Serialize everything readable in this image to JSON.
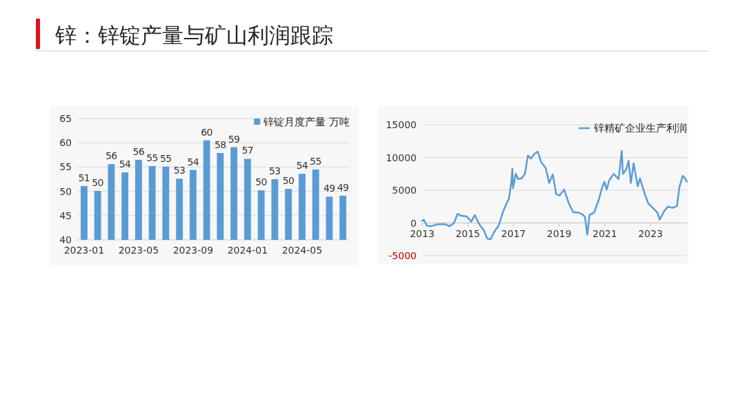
{
  "chart_data": [
    {
      "type": "bar",
      "title": "锌：锌锭产量与矿山利润跟踪",
      "categories": [
        "2023-01",
        null,
        null,
        null,
        "2023-05",
        null,
        null,
        null,
        "2023-09",
        null,
        null,
        null,
        "2024-01",
        null,
        null,
        null,
        "2024-05",
        null,
        null,
        null
      ],
      "series": [
        {
          "name": "锌锭月度产量 万吨",
          "color": "#5b9bd5",
          "values": [
            51.1,
            50.1,
            55.6,
            53.9,
            56.5,
            55.2,
            55.1,
            52.6,
            54.4,
            60.5,
            57.9,
            59.1,
            56.7,
            50.2,
            52.5,
            50.5,
            53.6,
            54.5,
            48.9,
            49.1
          ],
          "value_labels": [
            "51",
            "50",
            "56",
            "54",
            "56",
            "55",
            "55",
            "53",
            "54",
            "60",
            "58",
            "59",
            "57",
            "50",
            "53",
            "50",
            "54",
            "55",
            "49",
            "49"
          ]
        }
      ],
      "ylim": [
        40,
        65
      ],
      "yticks": [
        40,
        45,
        50,
        55,
        60,
        65
      ],
      "grid": "y",
      "legend": "top right"
    },
    {
      "type": "line",
      "series": [
        {
          "name": "锌精矿企业生产利润",
          "color": "#5b9bd5",
          "x": [
            2013.0,
            2013.07,
            2013.2,
            2013.37,
            2013.7,
            2014.0,
            2014.2,
            2014.4,
            2014.55,
            2014.7,
            2014.95,
            2015.15,
            2015.3,
            2015.5,
            2015.7,
            2015.85,
            2016.0,
            2016.15,
            2016.35,
            2016.55,
            2016.7,
            2016.8,
            2016.9,
            2016.95,
            2016.98,
            2017.1,
            2017.2,
            2017.35,
            2017.5,
            2017.63,
            2017.76,
            2017.9,
            2018.06,
            2018.21,
            2018.41,
            2018.56,
            2018.72,
            2018.87,
            2019.02,
            2019.22,
            2019.42,
            2019.62,
            2019.83,
            2020.03,
            2020.13,
            2020.23,
            2020.33,
            2020.53,
            2020.73,
            2020.88,
            2020.98,
            2021.08,
            2021.19,
            2021.39,
            2021.6,
            2021.74,
            2021.79,
            2021.94,
            2022.04,
            2022.14,
            2022.26,
            2022.44,
            2022.54,
            2022.75,
            2022.9,
            2023.1,
            2023.3,
            2023.4,
            2023.6,
            2023.76,
            2023.96,
            2024.16,
            2024.26,
            2024.41,
            2024.51,
            2024.59
          ],
          "values": [
            300,
            500,
            -400,
            -500,
            -200,
            -200,
            -500,
            0,
            1400,
            1100,
            1000,
            200,
            1200,
            -200,
            -1100,
            -2400,
            -2500,
            -1400,
            -400,
            1800,
            3000,
            3700,
            6100,
            8300,
            5300,
            7500,
            6700,
            6800,
            7500,
            10300,
            9800,
            10500,
            10900,
            9300,
            8400,
            6100,
            7400,
            4400,
            4200,
            5100,
            3000,
            1600,
            1600,
            1300,
            900,
            -1800,
            1200,
            1600,
            3500,
            5400,
            6300,
            5100,
            6500,
            7500,
            6700,
            11000,
            7500,
            8200,
            9500,
            6100,
            9100,
            5600,
            6800,
            4400,
            3000,
            2300,
            1600,
            500,
            1800,
            2500,
            2300,
            2600,
            5400,
            7200,
            6800,
            6300
          ]
        }
      ],
      "xlim": [
        2013,
        2024.6
      ],
      "xticks": [
        2013,
        2015,
        2017,
        2019,
        2021,
        2023
      ],
      "ylim": [
        -5000,
        15000
      ],
      "yticks": [
        -5000,
        0,
        5000,
        10000,
        15000
      ],
      "grid": "y",
      "legend": "top right"
    }
  ]
}
